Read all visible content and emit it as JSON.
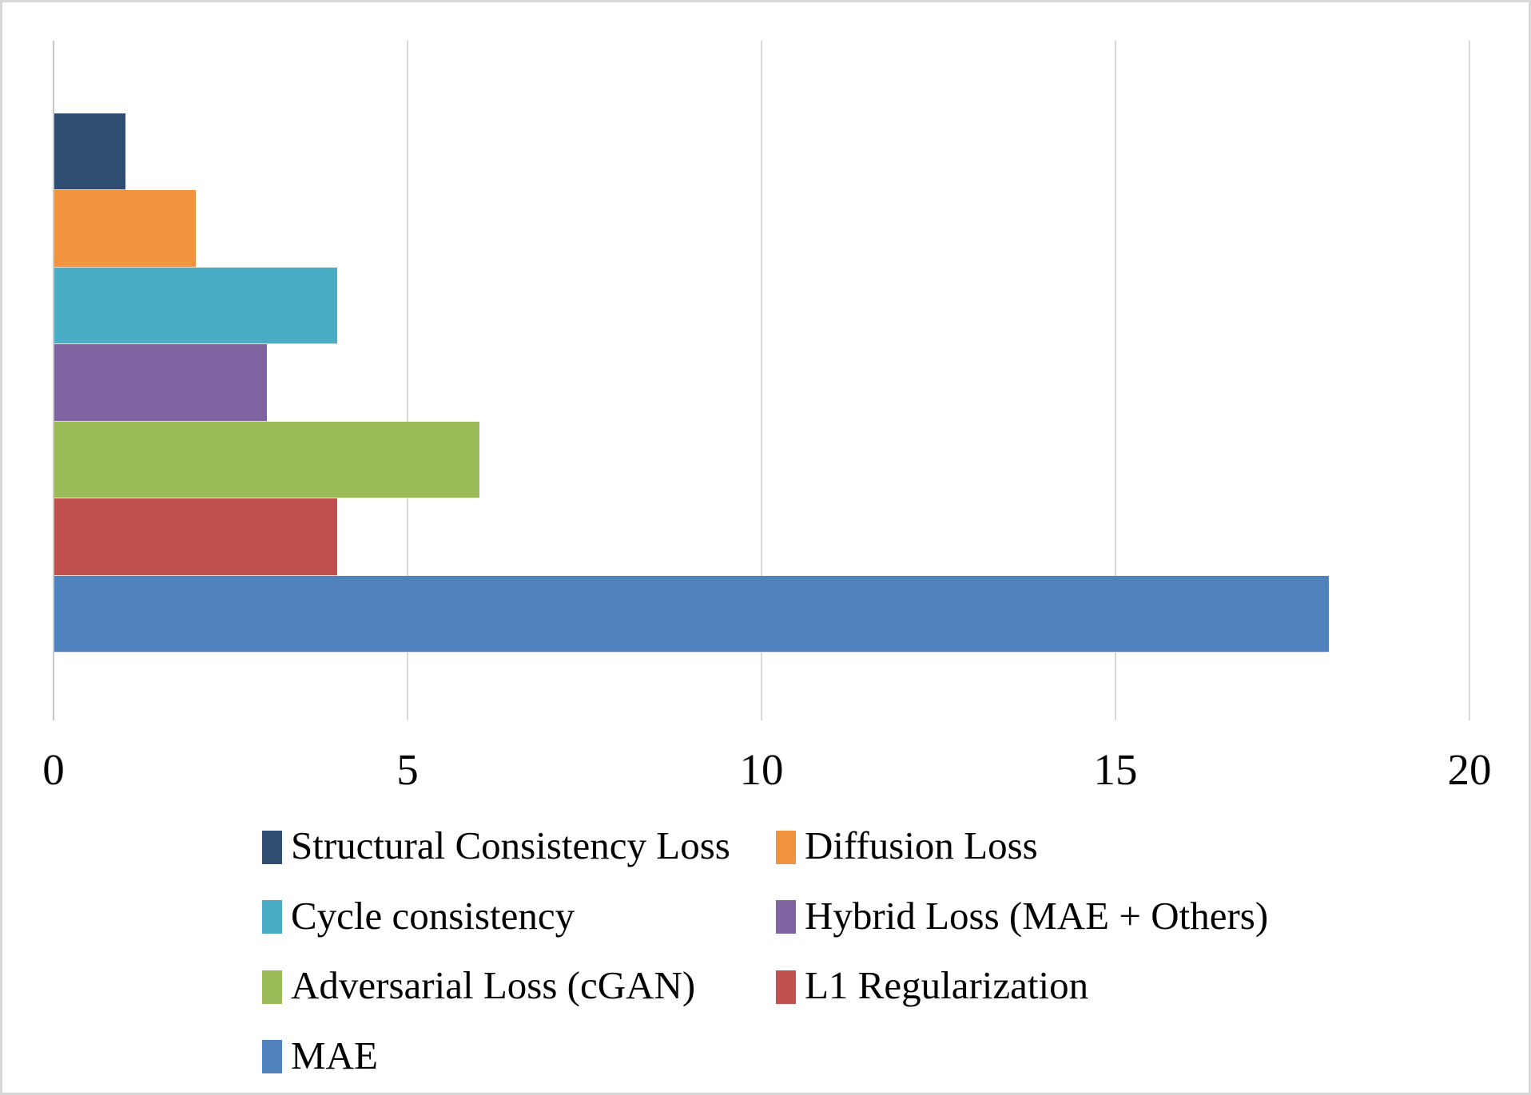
{
  "chart_data": {
    "type": "bar",
    "orientation": "horizontal",
    "title": "",
    "xlabel": "",
    "ylabel": "",
    "categories": [
      "Structural Consistency Loss",
      "Diffusion Loss",
      "Cycle consistency",
      "Hybrid Loss (MAE + Others)",
      "Adversarial Loss (cGAN)",
      "L1 Regularization",
      "MAE"
    ],
    "values": [
      1,
      2,
      4,
      3,
      6,
      4,
      18
    ],
    "colors": [
      "#2E4D71",
      "#F2943F",
      "#4BACC6",
      "#8064A2",
      "#9BBB59",
      "#C0504D",
      "#4F81BD"
    ],
    "xlim": [
      0,
      20
    ],
    "x_ticks": [
      0,
      5,
      10,
      15,
      20
    ],
    "x_tick_labels": [
      "0",
      "5",
      "10",
      "15",
      "20"
    ],
    "grid": true,
    "legend_position": "bottom",
    "legend_columns": 2
  },
  "style": {
    "gridline_color": "#D9D9D9",
    "axis_line_color": "#C9C9C9",
    "frame_border_color": "#D7D7D7",
    "background_color": "#FFFFFF",
    "text_color": "#000000"
  }
}
